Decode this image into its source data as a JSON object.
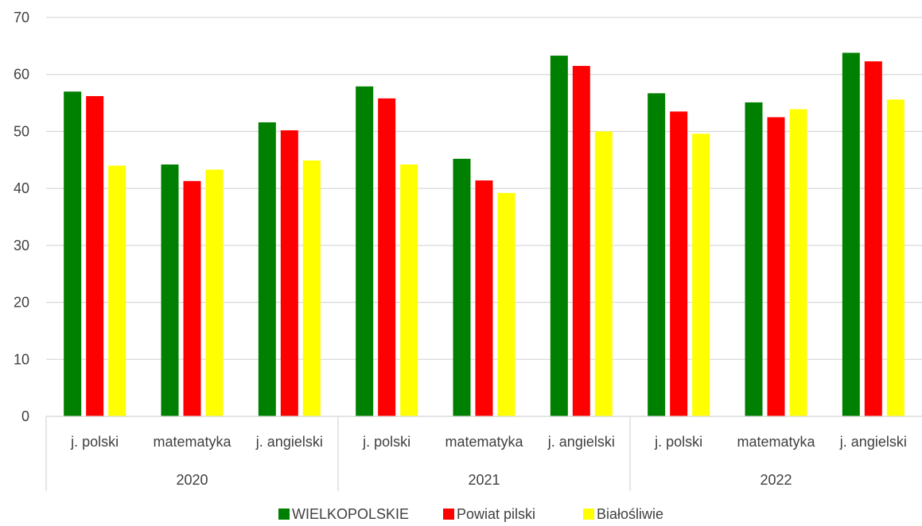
{
  "chart_data": {
    "type": "bar",
    "groups": [
      {
        "label": "2020",
        "categories": [
          "j. polski",
          "matematyka",
          "j. angielski"
        ]
      },
      {
        "label": "2021",
        "categories": [
          "j. polski",
          "matematyka",
          "j. angielski"
        ]
      },
      {
        "label": "2022",
        "categories": [
          "j. polski",
          "matematyka",
          "j. angielski"
        ]
      }
    ],
    "series": [
      {
        "name": "WIELKOPOLSKIE",
        "color": "#008000",
        "values": [
          57,
          44.2,
          51.6,
          57.9,
          45.2,
          63.3,
          56.7,
          55.1,
          63.8
        ]
      },
      {
        "name": "Powiat pilski",
        "color": "#ff0000",
        "values": [
          56.2,
          41.3,
          50.2,
          55.8,
          41.4,
          61.5,
          53.5,
          52.5,
          62.3
        ]
      },
      {
        "name": "Białośliwie",
        "color": "#ffff00",
        "values": [
          44,
          43.3,
          44.9,
          44.2,
          39.2,
          50,
          49.6,
          53.9,
          55.6
        ]
      }
    ],
    "ylim": [
      0,
      70
    ],
    "yticks": [
      0,
      10,
      20,
      30,
      40,
      50,
      60,
      70
    ],
    "grid": true,
    "legend_position": "bottom",
    "title": "",
    "xlabel": "",
    "ylabel": ""
  }
}
